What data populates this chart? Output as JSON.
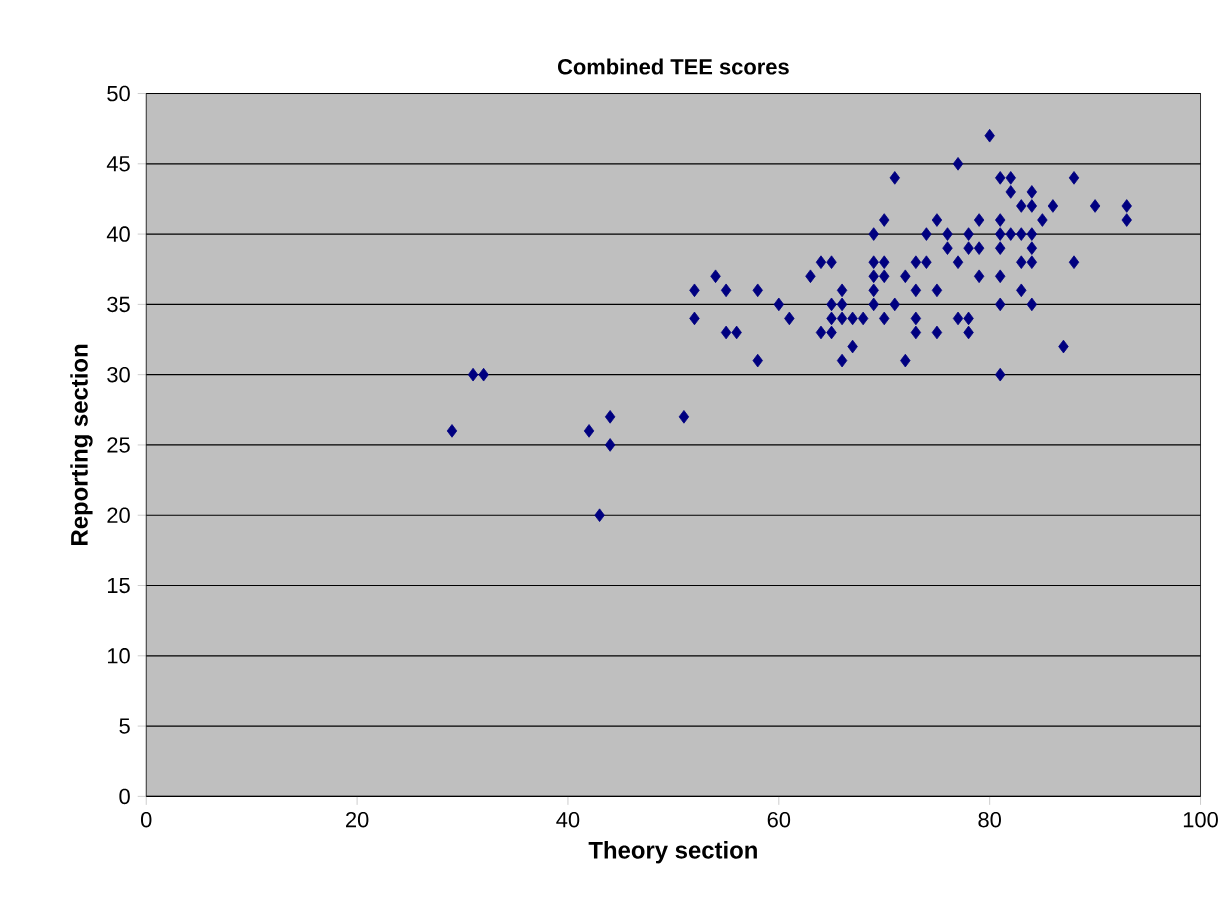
{
  "chart_data": {
    "type": "scatter",
    "title": "Combined TEE scores",
    "xlabel": "Theory section",
    "ylabel": "Reporting section",
    "xlim": [
      0,
      100
    ],
    "xticks": [
      0,
      20,
      40,
      60,
      80,
      100
    ],
    "ylim": [
      0,
      50
    ],
    "yticks": [
      0,
      5,
      10,
      15,
      20,
      25,
      30,
      35,
      40,
      45,
      50
    ],
    "grid": "y",
    "marker": "diamond",
    "series": [
      {
        "color": "#000080",
        "x": [
          29,
          31,
          32,
          42,
          44,
          44,
          43,
          51,
          52,
          52,
          54,
          55,
          55,
          56,
          58,
          58,
          60,
          61,
          63,
          64,
          65,
          64,
          65,
          65,
          65,
          66,
          66,
          66,
          66,
          67,
          67,
          68,
          69,
          69,
          69,
          69,
          69,
          70,
          70,
          70,
          70,
          71,
          71,
          72,
          72,
          73,
          73,
          73,
          73,
          74,
          74,
          75,
          75,
          75,
          76,
          76,
          77,
          77,
          77,
          78,
          78,
          78,
          78,
          79,
          79,
          79,
          80,
          81,
          81,
          81,
          81,
          81,
          81,
          81,
          82,
          82,
          82,
          83,
          83,
          83,
          83,
          84,
          84,
          84,
          84,
          84,
          84,
          85,
          86,
          87,
          88,
          88,
          90,
          93,
          93
        ],
        "values": [
          26,
          30,
          30,
          26,
          27,
          25,
          20,
          27,
          36,
          34,
          37,
          36,
          33,
          33,
          36,
          31,
          35,
          34,
          37,
          38,
          38,
          33,
          33,
          35,
          34,
          36,
          35,
          34,
          31,
          34,
          32,
          34,
          40,
          38,
          37,
          36,
          35,
          38,
          37,
          41,
          34,
          44,
          35,
          37,
          31,
          38,
          36,
          34,
          33,
          40,
          38,
          41,
          36,
          33,
          40,
          39,
          45,
          38,
          34,
          40,
          39,
          34,
          33,
          41,
          39,
          37,
          47,
          44,
          41,
          40,
          39,
          37,
          35,
          30,
          44,
          43,
          40,
          42,
          40,
          38,
          36,
          43,
          42,
          40,
          39,
          38,
          35,
          41,
          42,
          32,
          44,
          38,
          42,
          42,
          41
        ]
      }
    ]
  }
}
